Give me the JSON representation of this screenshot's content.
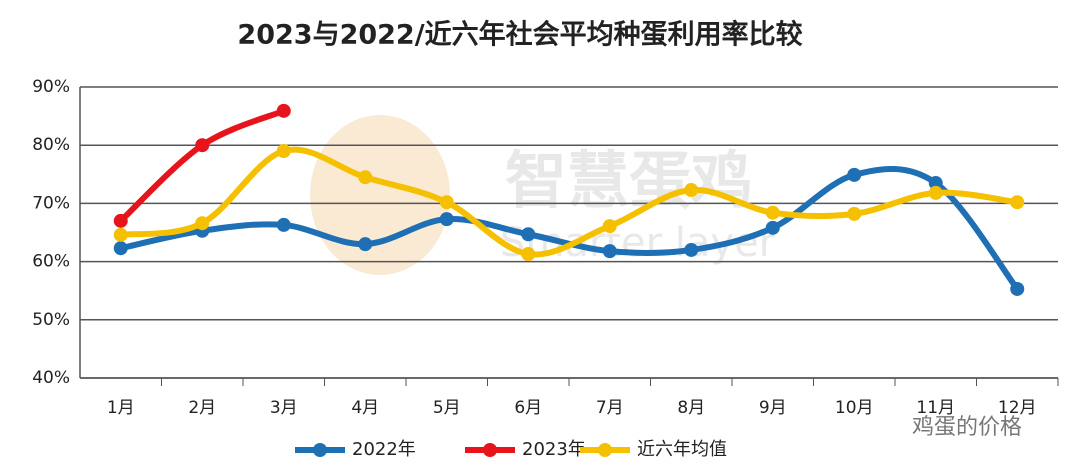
{
  "chart_data": {
    "type": "line",
    "title": "2023与2022/近六年社会平均种蛋利用率比较",
    "categories": [
      "1月",
      "2月",
      "3月",
      "4月",
      "5月",
      "6月",
      "7月",
      "8月",
      "9月",
      "10月",
      "11月",
      "12月"
    ],
    "series": [
      {
        "name": "2022年",
        "color": "#1f6fb5",
        "values": [
          62.3,
          65.3,
          66.3,
          63.0,
          67.3,
          64.7,
          61.8,
          62.0,
          65.8,
          74.9,
          73.5,
          55.3
        ]
      },
      {
        "name": "2023年",
        "color": "#e8141b",
        "values": [
          67.0,
          80.0,
          85.9,
          null,
          null,
          null,
          null,
          null,
          null,
          null,
          null,
          null
        ]
      },
      {
        "name": "近六年均值",
        "color": "#f5c000",
        "values": [
          64.6,
          66.6,
          79.0,
          74.5,
          70.2,
          61.3,
          66.1,
          72.3,
          68.4,
          68.2,
          71.8,
          70.2
        ]
      }
    ],
    "ylim": [
      40,
      90
    ],
    "yticks": [
      {
        "value": 40,
        "label": "40%"
      },
      {
        "value": 50,
        "label": "50%"
      },
      {
        "value": 60,
        "label": "60%"
      },
      {
        "value": 70,
        "label": "70%"
      },
      {
        "value": 80,
        "label": "80%"
      },
      {
        "value": 90,
        "label": "90%"
      }
    ],
    "grid": true,
    "legend": "bottom",
    "watermarks": [
      "智慧蛋鸡",
      "Smarter layer",
      "鸡蛋的价格"
    ]
  }
}
